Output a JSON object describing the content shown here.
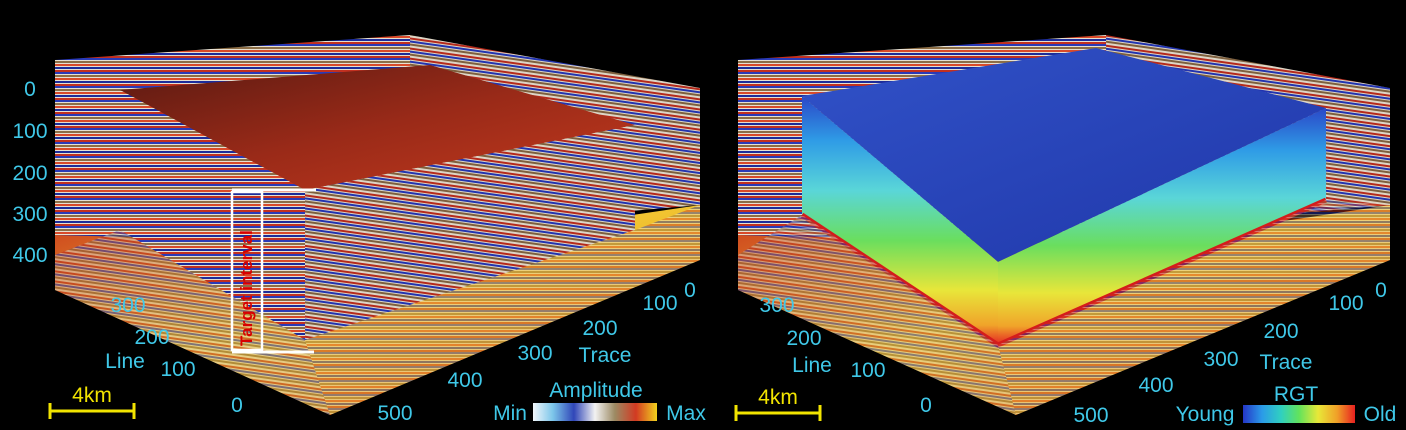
{
  "left_panel": {
    "depth_ticks": [
      "0",
      "100",
      "200",
      "300",
      "400"
    ],
    "line_axis": {
      "label": "Line",
      "ticks": [
        "300",
        "200",
        "100",
        "0"
      ]
    },
    "trace_axis": {
      "label": "Trace",
      "ticks": [
        "0",
        "100",
        "200",
        "300",
        "400",
        "500"
      ]
    },
    "annotation": "Target interval",
    "scale_bar": "4km",
    "colorbar": {
      "title": "Amplitude",
      "min_label": "Min",
      "max_label": "Max",
      "colors": [
        "#f2f7fb",
        "#7cc6ea",
        "#3046b8",
        "#f2f2f2",
        "#9c8a63",
        "#d23a22",
        "#f2d21e"
      ]
    }
  },
  "right_panel": {
    "line_axis": {
      "label": "Line",
      "ticks": [
        "300",
        "200",
        "100",
        "0"
      ]
    },
    "trace_axis": {
      "label": "Trace",
      "ticks": [
        "0",
        "100",
        "200",
        "300",
        "400",
        "500"
      ]
    },
    "scale_bar": "4km",
    "colorbar": {
      "title": "RGT",
      "min_label": "Young",
      "max_label": "Old",
      "colors": [
        "#2436c8",
        "#2b9be8",
        "#30d0c0",
        "#62e35c",
        "#e8e838",
        "#f0a028",
        "#e82020"
      ]
    }
  }
}
